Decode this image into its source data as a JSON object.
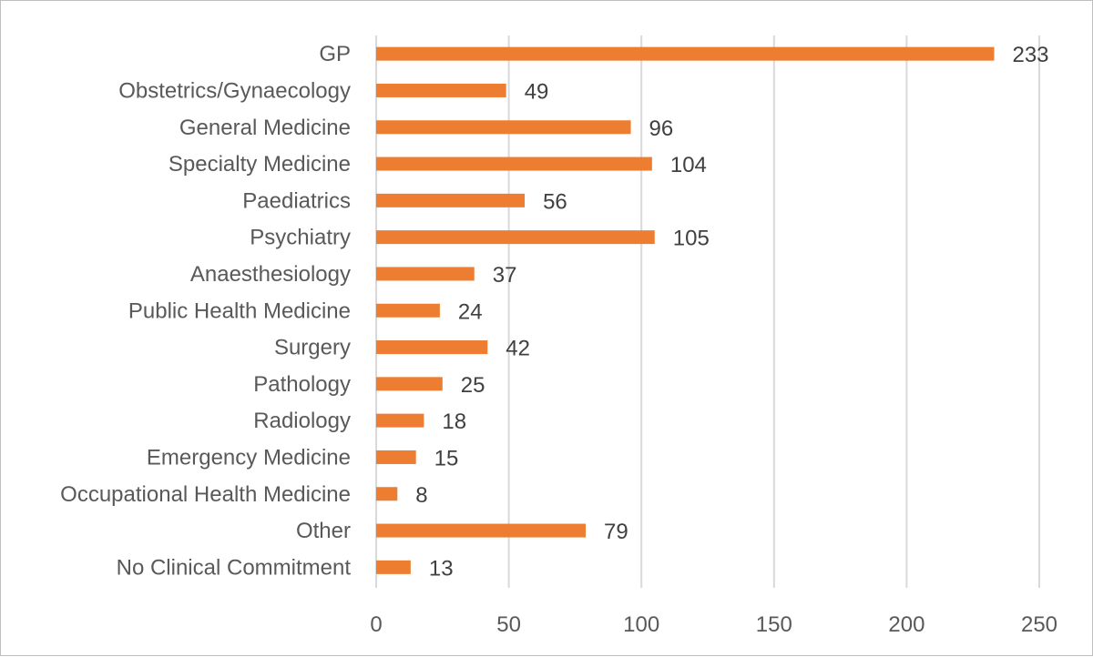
{
  "chart_data": {
    "type": "bar",
    "orientation": "horizontal",
    "categories": [
      "GP",
      "Obstetrics/Gynaecology",
      "General Medicine",
      "Specialty Medicine",
      "Paediatrics",
      "Psychiatry",
      "Anaesthesiology",
      "Public Health Medicine",
      "Surgery",
      "Pathology",
      "Radiology",
      "Emergency Medicine",
      "Occupational Health Medicine",
      "Other",
      "No Clinical Commitment"
    ],
    "values": [
      233,
      49,
      96,
      104,
      56,
      105,
      37,
      24,
      42,
      25,
      18,
      15,
      8,
      79,
      13
    ],
    "xlim": [
      0,
      250
    ],
    "x_ticks": [
      0,
      50,
      100,
      150,
      200,
      250
    ],
    "grid": "vertical",
    "legend": "none",
    "bar_color": "#ed7d31",
    "gridline_color": "#d9d9d9",
    "title": "",
    "xlabel": "",
    "ylabel": ""
  }
}
